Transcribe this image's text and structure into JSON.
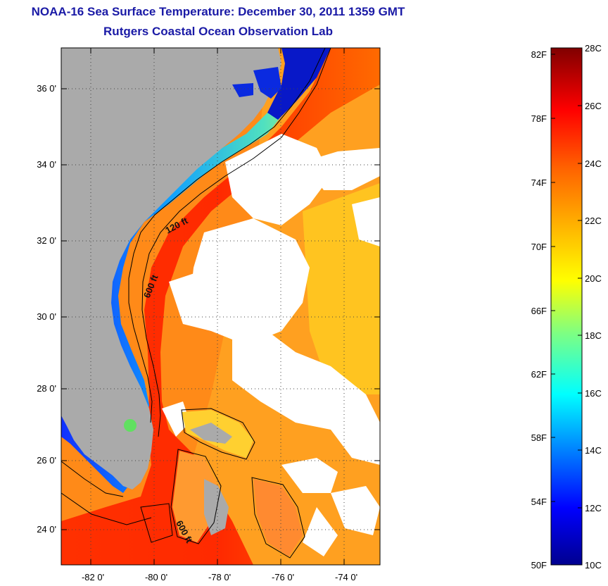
{
  "title": {
    "line1": "NOAA-16 Sea Surface Temperature:  December 30, 2011 1359 GMT",
    "line2": "Rutgers Coastal Ocean Observation Lab"
  },
  "map": {
    "lat_labels": [
      "36 0'",
      "34 0'",
      "32 0'",
      "30 0'",
      "28 0'",
      "26 0'",
      "24 0'"
    ],
    "lon_labels": [
      "-82 0'",
      "-80 0'",
      "-78 0'",
      "-76 0'",
      "-74 0'"
    ],
    "contour_labels": [
      "120 ft",
      "600 ft",
      "600 ft"
    ],
    "land_color": "#aaaaaa",
    "cloud_color": "#ffffff"
  },
  "colorbar": {
    "fahrenheit_labels": [
      "82F",
      "78F",
      "74F",
      "70F",
      "66F",
      "62F",
      "58F",
      "54F",
      "50F"
    ],
    "celsius_labels": [
      "28C",
      "26C",
      "24C",
      "22C",
      "20C",
      "18C",
      "16C",
      "14C",
      "12C",
      "10C"
    ],
    "colormap": [
      "#00008f",
      "#0000ff",
      "#0080ff",
      "#00ffff",
      "#80ff80",
      "#ffff00",
      "#ff8000",
      "#ff0000",
      "#800000"
    ]
  }
}
